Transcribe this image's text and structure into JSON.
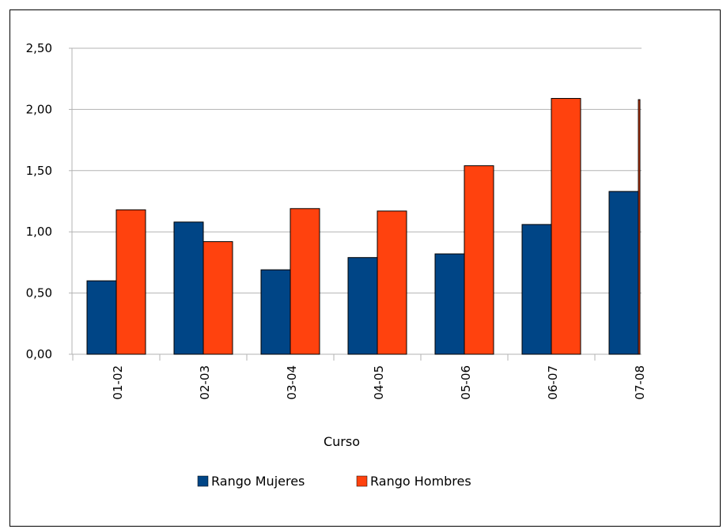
{
  "chart_data": {
    "type": "bar",
    "title": "",
    "xlabel": "Curso",
    "ylabel": "",
    "categories": [
      "01-02",
      "02-03",
      "03-04",
      "04-05",
      "05-06",
      "06-07",
      "07-08"
    ],
    "series": [
      {
        "name": "Rango Mujeres",
        "color": "#004586",
        "values": [
          0.6,
          1.08,
          0.69,
          0.79,
          0.82,
          1.06,
          1.33
        ]
      },
      {
        "name": "Rango Hombres",
        "color": "#FF420E",
        "values": [
          1.18,
          0.92,
          1.19,
          1.17,
          1.54,
          2.09,
          2.08
        ]
      }
    ],
    "ylim": [
      0,
      2.5
    ],
    "yticks": [
      "0,00",
      "0,50",
      "1,00",
      "1,50",
      "2,00",
      "2,50"
    ],
    "ytick_values": [
      0,
      0.5,
      1.0,
      1.5,
      2.0,
      2.5
    ],
    "grid": true,
    "legend_position": "bottom"
  }
}
